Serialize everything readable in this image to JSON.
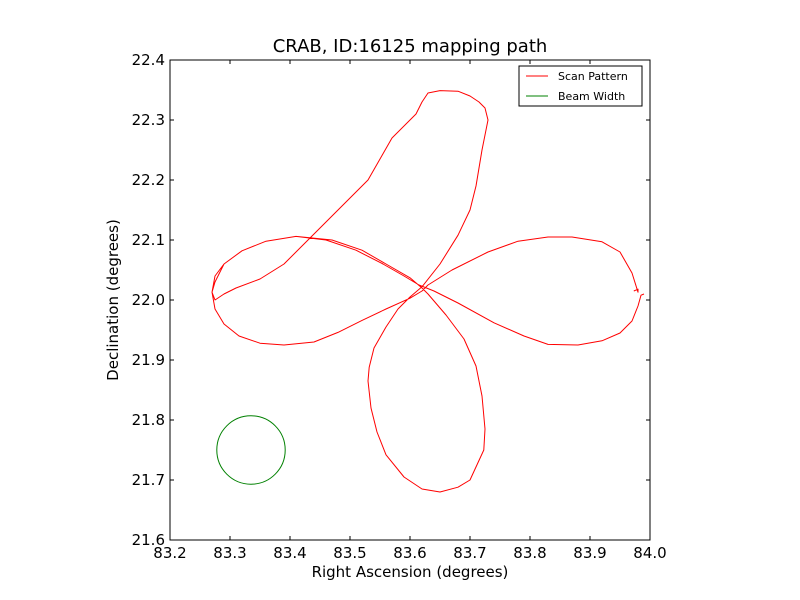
{
  "chart_data": {
    "type": "line",
    "title": "CRAB, ID:16125 mapping path",
    "xlabel": "Right Ascension (degrees)",
    "ylabel": "Declination (degrees)",
    "xlim": [
      83.2,
      84.0
    ],
    "ylim": [
      21.6,
      22.4
    ],
    "x_ticks": [
      83.2,
      83.3,
      83.4,
      83.5,
      83.6,
      83.7,
      83.8,
      83.9,
      84.0
    ],
    "y_ticks": [
      21.6,
      21.7,
      21.8,
      21.9,
      22.0,
      22.1,
      22.2,
      22.3,
      22.4
    ],
    "x_tick_labels": [
      "83.2",
      "83.3",
      "83.4",
      "83.5",
      "83.6",
      "83.7",
      "83.8",
      "83.9",
      "84.0"
    ],
    "y_tick_labels": [
      "21.6",
      "21.7",
      "21.8",
      "21.9",
      "22.0",
      "22.1",
      "22.2",
      "22.3",
      "22.4"
    ],
    "grid": false,
    "legend_position": "top-right",
    "series": [
      {
        "name": "Scan Pattern",
        "color": "#ff0000",
        "x": [
          83.973,
          83.98,
          83.98,
          83.97,
          83.95,
          83.92,
          83.87,
          83.83,
          83.78,
          83.73,
          83.67,
          83.63,
          83.62,
          83.6,
          83.56,
          83.52,
          83.48,
          83.44,
          83.39,
          83.35,
          83.315,
          83.29,
          83.275,
          83.27,
          83.275,
          83.29,
          83.32,
          83.36,
          83.41,
          83.47,
          83.52,
          83.56,
          83.6,
          83.62,
          83.63,
          83.66,
          83.69,
          83.71,
          83.72,
          83.725,
          83.723,
          83.7,
          83.68,
          83.65,
          83.62,
          83.59,
          83.56,
          83.545,
          83.535,
          83.53,
          83.532,
          83.54,
          83.56,
          83.58,
          83.6,
          83.62,
          83.65,
          83.68,
          83.7,
          83.71,
          83.72,
          83.73,
          83.725,
          83.715,
          83.7,
          83.68,
          83.65,
          83.63,
          83.62,
          83.61,
          83.57,
          83.53,
          83.48,
          83.43,
          83.39,
          83.35,
          83.31,
          83.29,
          83.275,
          83.27,
          83.275,
          83.29,
          83.32,
          83.36,
          83.41,
          83.46,
          83.51,
          83.555,
          83.59,
          83.615,
          83.64,
          83.68,
          83.74,
          83.79,
          83.83,
          83.88,
          83.92,
          83.95,
          83.97,
          83.98,
          83.985,
          83.99
        ],
        "y": [
          22.015,
          22.018,
          22.013,
          22.045,
          22.08,
          22.097,
          22.105,
          22.105,
          22.098,
          22.08,
          22.05,
          22.025,
          22.015,
          22.003,
          21.985,
          21.966,
          21.946,
          21.93,
          21.925,
          21.928,
          21.94,
          21.96,
          21.985,
          22.013,
          22.04,
          22.06,
          22.082,
          22.098,
          22.106,
          22.1,
          22.083,
          22.06,
          22.037,
          22.02,
          22.01,
          21.975,
          21.935,
          21.89,
          21.84,
          21.785,
          21.75,
          21.7,
          21.688,
          21.68,
          21.685,
          21.705,
          21.742,
          21.78,
          21.82,
          21.865,
          21.888,
          21.92,
          21.955,
          21.985,
          22.005,
          22.022,
          22.06,
          22.108,
          22.15,
          22.19,
          22.25,
          22.3,
          22.32,
          22.33,
          22.34,
          22.348,
          22.349,
          22.345,
          22.33,
          22.31,
          22.27,
          22.2,
          22.15,
          22.1,
          22.06,
          22.035,
          22.02,
          22.01,
          22.0,
          22.013,
          22.03,
          22.06,
          22.082,
          22.098,
          22.106,
          22.1,
          22.083,
          22.06,
          22.04,
          22.025,
          22.015,
          21.995,
          21.962,
          21.94,
          21.926,
          21.925,
          21.932,
          21.945,
          21.965,
          21.99,
          22.008,
          22.01
        ]
      },
      {
        "name": "Beam Width",
        "color": "#008000",
        "center": [
          83.335,
          21.75
        ],
        "radius_deg": 0.057
      }
    ]
  }
}
